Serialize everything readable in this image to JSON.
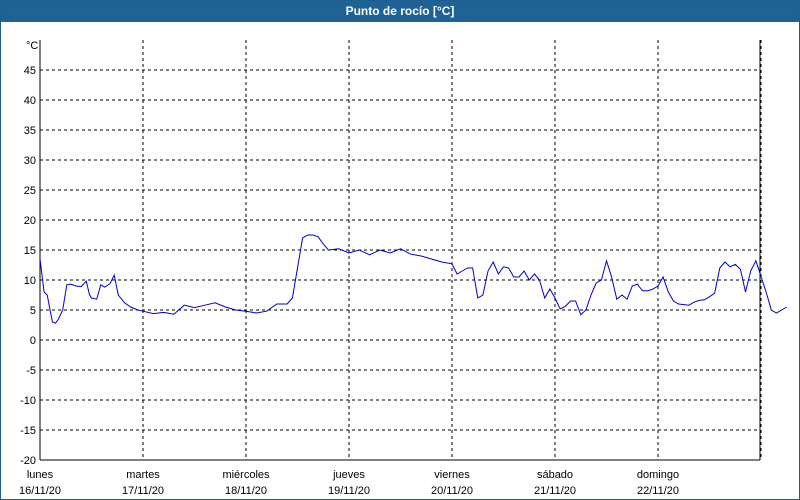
{
  "window": {
    "title": "Punto de rocío [°C]"
  },
  "colors": {
    "title_bar": "#1e6296",
    "line": "#0000cc",
    "grid": "#000000"
  },
  "chart_data": {
    "type": "line",
    "title": "Punto de rocío [°C]",
    "ylabel": "°C",
    "ylim": [
      -20,
      50
    ],
    "yticks": [
      -20,
      -15,
      -10,
      -5,
      0,
      5,
      10,
      15,
      20,
      25,
      30,
      35,
      40,
      45
    ],
    "grid": true,
    "day_labels": [
      {
        "day": "lunes",
        "date": "16/11/20"
      },
      {
        "day": "martes",
        "date": "17/11/20"
      },
      {
        "day": "miércoles",
        "date": "18/11/20"
      },
      {
        "day": "jueves",
        "date": "19/11/20"
      },
      {
        "day": "viernes",
        "date": "20/11/20"
      },
      {
        "day": "sábado",
        "date": "21/11/20"
      },
      {
        "day": "domingo",
        "date": "22/11/20"
      }
    ],
    "series": [
      {
        "x": [
          0.0,
          0.04,
          0.07,
          0.12,
          0.15,
          0.18,
          0.22,
          0.26,
          0.3,
          0.35,
          0.4,
          0.45,
          0.48,
          0.5,
          0.55,
          0.59,
          0.63,
          0.68,
          0.72,
          0.76,
          0.82,
          0.88,
          0.95,
          1.0,
          1.1,
          1.2,
          1.3,
          1.4,
          1.5,
          1.6,
          1.7,
          1.8,
          1.9,
          2.0,
          2.1,
          2.2,
          2.3,
          2.4,
          2.45,
          2.5,
          2.55,
          2.6,
          2.65,
          2.7,
          2.75,
          2.8,
          2.9,
          3.0,
          3.1,
          3.2,
          3.3,
          3.4,
          3.5,
          3.6,
          3.7,
          3.8,
          3.9,
          4.0,
          4.05,
          4.1,
          4.15,
          4.2,
          4.25,
          4.3,
          4.35,
          4.4,
          4.45,
          4.5,
          4.55,
          4.6,
          4.65,
          4.7,
          4.75,
          4.8,
          4.85,
          4.9,
          4.95,
          5.0,
          5.05,
          5.1,
          5.15,
          5.2,
          5.25,
          5.3,
          5.35,
          5.4,
          5.45,
          5.5,
          5.55,
          5.6,
          5.65,
          5.7,
          5.75,
          5.8,
          5.85,
          5.9,
          5.95,
          6.0,
          6.05,
          6.1,
          6.15,
          6.2,
          6.3,
          6.35,
          6.4,
          6.45,
          6.5,
          6.55,
          6.6,
          6.65,
          6.7,
          6.75,
          6.8,
          6.85,
          6.9,
          6.95
        ],
        "values": [
          13.5,
          8.0,
          7.5,
          3.0,
          2.8,
          3.5,
          5.0,
          9.2,
          9.3,
          9.0,
          8.9,
          9.8,
          7.6,
          7.0,
          6.8,
          9.2,
          8.8,
          9.4,
          10.8,
          7.5,
          6.2,
          5.5,
          5.0,
          4.8,
          4.4,
          4.6,
          4.3,
          5.8,
          5.4,
          5.8,
          6.2,
          5.5,
          5.0,
          4.8,
          4.5,
          4.8,
          6.0,
          6.0,
          7.0,
          12.0,
          17.0,
          17.5,
          17.5,
          17.2,
          16.0,
          15.0,
          15.2,
          14.5,
          15.0,
          14.2,
          15.0,
          14.5,
          15.2,
          14.3,
          14.0,
          13.5,
          13.0,
          12.7,
          11.0,
          11.5,
          12.0,
          12.0,
          7.0,
          7.5,
          11.5,
          13.0,
          11.0,
          12.2,
          12.0,
          10.5,
          10.5,
          11.5,
          10.0,
          11.0,
          10.0,
          7.0,
          8.5,
          7.0,
          5.2,
          5.6,
          6.5,
          6.5,
          4.2,
          5.0,
          7.5,
          9.5,
          10.0,
          13.2,
          10.5,
          6.8,
          7.5,
          6.8,
          9.0,
          9.3,
          8.2,
          8.2,
          8.5,
          9.0,
          10.5,
          8.0,
          6.5,
          6.0,
          5.8,
          6.3,
          6.6,
          6.7,
          7.2,
          7.8,
          12.0,
          13.0,
          12.2,
          12.6,
          11.8,
          8.0,
          11.5,
          13.2
        ],
        "tail_x": [
          7.05,
          7.1,
          7.15,
          7.2,
          7.25
        ],
        "tail_values": [
          8.0,
          5.0,
          4.5,
          5.0,
          5.5
        ]
      }
    ]
  }
}
